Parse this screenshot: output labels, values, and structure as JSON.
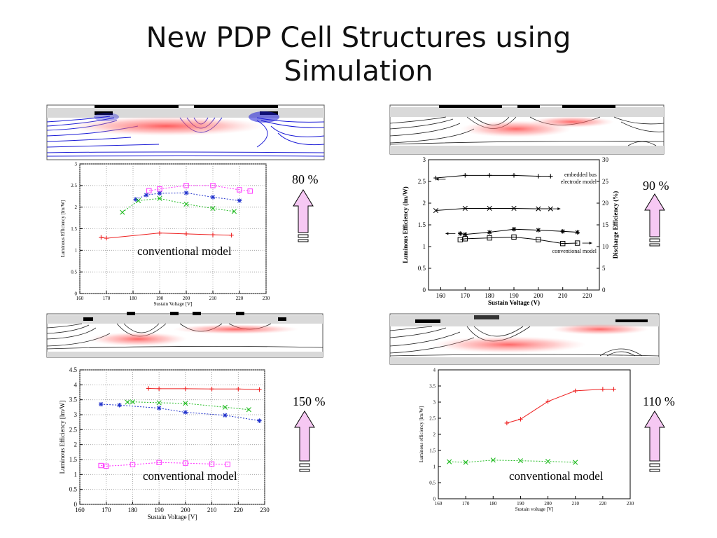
{
  "title_line1": "New PDP Cell Structures using",
  "title_line2": "Simulation",
  "chart_data": [
    {
      "type": "line",
      "xlabel": "Sustain Voltage [V]",
      "ylabel": "Luminous Efficiency [lm/W]",
      "xlim": [
        160,
        230
      ],
      "ylim": [
        0,
        3
      ],
      "xticks": [
        160,
        170,
        180,
        190,
        200,
        210,
        220,
        230
      ],
      "yticks": [
        0,
        0.5,
        1,
        1.5,
        2,
        2.5,
        3
      ],
      "grid": true,
      "improvement_label": "80 %",
      "annotation": "conventional model",
      "series": [
        {
          "color": "#ff33ff",
          "marker": "square",
          "dash": true,
          "x": [
            186,
            190,
            200,
            210,
            220,
            224
          ],
          "y": [
            2.38,
            2.42,
            2.5,
            2.5,
            2.4,
            2.37
          ]
        },
        {
          "color": "#2233cc",
          "marker": "star",
          "dash": true,
          "x": [
            181,
            185,
            190,
            200,
            210,
            220
          ],
          "y": [
            2.18,
            2.28,
            2.32,
            2.33,
            2.23,
            2.15
          ]
        },
        {
          "color": "#22bb22",
          "marker": "x",
          "dash": true,
          "x": [
            176,
            182,
            190,
            200,
            210,
            218
          ],
          "y": [
            1.88,
            2.15,
            2.2,
            2.07,
            1.97,
            1.9
          ]
        },
        {
          "color": "#ee2222",
          "marker": "plus",
          "dash": false,
          "x": [
            168,
            170,
            190,
            200,
            210,
            217
          ],
          "y": [
            1.3,
            1.28,
            1.4,
            1.38,
            1.36,
            1.35
          ]
        }
      ]
    },
    {
      "type": "line",
      "xlabel": "Sustain Voltage (V)",
      "ylabel": "Luminous Efficiency (lm/W)",
      "y2label": "Discharge Efficiency (%)",
      "xlim": [
        155,
        225
      ],
      "ylim": [
        0,
        3
      ],
      "y2lim": [
        0,
        30
      ],
      "xticks": [
        160,
        170,
        180,
        190,
        200,
        210,
        220
      ],
      "yticks": [
        0,
        0.5,
        1,
        1.5,
        2,
        2.5,
        3
      ],
      "y2ticks": [
        0,
        5,
        10,
        15,
        20,
        25,
        30
      ],
      "grid": false,
      "improvement_label": "90 %",
      "annotations": [
        "embedded bus",
        "electrode model",
        "conventional model"
      ],
      "series": [
        {
          "color": "#000000",
          "marker": "plus",
          "dash": false,
          "x": [
            158,
            170,
            180,
            190,
            200,
            205
          ],
          "y": [
            2.58,
            2.64,
            2.64,
            2.64,
            2.62,
            2.62
          ]
        },
        {
          "color": "#000000",
          "marker": "x",
          "dash": false,
          "x": [
            158,
            170,
            180,
            190,
            200,
            205
          ],
          "y": [
            1.83,
            1.88,
            1.88,
            1.88,
            1.87,
            1.87
          ]
        },
        {
          "color": "#000000",
          "marker": "star",
          "dash": false,
          "x": [
            168,
            170,
            180,
            190,
            200,
            210,
            216
          ],
          "y": [
            1.3,
            1.28,
            1.33,
            1.4,
            1.38,
            1.35,
            1.33
          ]
        },
        {
          "color": "#000000",
          "marker": "square",
          "dash": false,
          "x": [
            168,
            170,
            180,
            190,
            200,
            210,
            216
          ],
          "y": [
            1.16,
            1.18,
            1.2,
            1.22,
            1.16,
            1.07,
            1.08
          ]
        }
      ]
    },
    {
      "type": "line",
      "xlabel": "Sustain Voltage [V]",
      "ylabel": "Luminous Efficiency [lm/W]",
      "xlim": [
        160,
        230
      ],
      "ylim": [
        0,
        4.5
      ],
      "xticks": [
        160,
        170,
        180,
        190,
        200,
        210,
        220,
        230
      ],
      "yticks": [
        0,
        0.5,
        1,
        1.5,
        2,
        2.5,
        3,
        3.5,
        4,
        4.5
      ],
      "grid": true,
      "improvement_label": "150 %",
      "annotation": "conventional model",
      "series": [
        {
          "color": "#ee2222",
          "marker": "plus",
          "dash": false,
          "x": [
            186,
            190,
            200,
            210,
            220,
            228
          ],
          "y": [
            3.88,
            3.87,
            3.87,
            3.86,
            3.86,
            3.84
          ]
        },
        {
          "color": "#22bb22",
          "marker": "x",
          "dash": true,
          "x": [
            178,
            180,
            190,
            200,
            215,
            224
          ],
          "y": [
            3.42,
            3.43,
            3.4,
            3.38,
            3.25,
            3.17
          ]
        },
        {
          "color": "#2233cc",
          "marker": "star",
          "dash": true,
          "x": [
            168,
            175,
            190,
            200,
            215,
            228
          ],
          "y": [
            3.35,
            3.32,
            3.22,
            3.08,
            2.98,
            2.8
          ]
        },
        {
          "color": "#ff33ff",
          "marker": "square",
          "dash": true,
          "x": [
            168,
            170,
            180,
            190,
            200,
            210,
            216
          ],
          "y": [
            1.3,
            1.28,
            1.33,
            1.4,
            1.38,
            1.35,
            1.34
          ]
        }
      ]
    },
    {
      "type": "line",
      "xlabel": "Sustain voltage [V]",
      "ylabel": "Luminous efficiency [lm/W]",
      "xlim": [
        160,
        230
      ],
      "ylim": [
        0,
        4
      ],
      "xticks": [
        160,
        170,
        180,
        190,
        200,
        210,
        220,
        230
      ],
      "yticks": [
        0,
        0.5,
        1,
        1.5,
        2,
        2.5,
        3,
        3.5,
        4
      ],
      "grid": false,
      "improvement_label": "110 %",
      "annotation": "conventional model",
      "series": [
        {
          "color": "#ee2222",
          "marker": "plus",
          "dash": false,
          "x": [
            185,
            190,
            200,
            210,
            220,
            224
          ],
          "y": [
            2.35,
            2.47,
            3.02,
            3.35,
            3.4,
            3.4
          ]
        },
        {
          "color": "#22bb22",
          "marker": "x",
          "dash": true,
          "x": [
            164,
            170,
            180,
            190,
            200,
            210
          ],
          "y": [
            1.15,
            1.13,
            1.2,
            1.18,
            1.16,
            1.13
          ]
        }
      ]
    }
  ]
}
